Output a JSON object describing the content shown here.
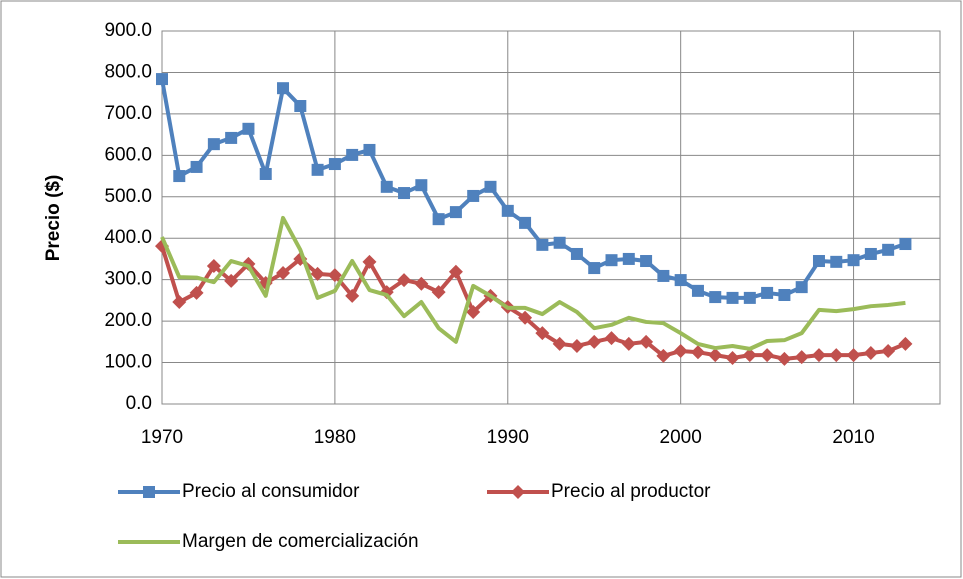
{
  "chart_data": {
    "type": "line",
    "y_label": "Precio ($)",
    "x": [
      1970,
      1971,
      1972,
      1973,
      1974,
      1975,
      1976,
      1977,
      1978,
      1979,
      1980,
      1981,
      1982,
      1983,
      1984,
      1985,
      1986,
      1987,
      1988,
      1989,
      1990,
      1991,
      1992,
      1993,
      1994,
      1995,
      1996,
      1997,
      1998,
      1999,
      2000,
      2001,
      2002,
      2003,
      2004,
      2005,
      2006,
      2007,
      2008,
      2009,
      2010,
      2011,
      2012,
      2013
    ],
    "series": [
      {
        "name": "Precio al consumidor",
        "color": "#4f81bd",
        "marker": "square",
        "values": [
          784,
          550,
          572,
          627,
          642,
          664,
          555,
          762,
          719,
          565,
          579,
          601,
          613,
          524,
          509,
          528,
          446,
          463,
          502,
          524,
          466,
          437,
          384,
          389,
          362,
          328,
          347,
          350,
          345,
          309,
          299,
          273,
          258,
          256,
          256,
          268,
          263,
          282,
          345,
          343,
          347,
          362,
          372,
          386
        ]
      },
      {
        "name": "Precio al productor",
        "color": "#c0504d",
        "marker": "diamond",
        "values": [
          381,
          246,
          268,
          333,
          297,
          338,
          292,
          316,
          350,
          314,
          311,
          261,
          343,
          270,
          299,
          290,
          270,
          319,
          222,
          261,
          234,
          208,
          171,
          145,
          140,
          150,
          159,
          145,
          150,
          116,
          128,
          125,
          118,
          111,
          118,
          118,
          109,
          113,
          118,
          118,
          118,
          123,
          128,
          145
        ]
      },
      {
        "name": "Margen de comercialización",
        "color": "#9bbb59",
        "values": [
          403,
          306,
          305,
          294,
          345,
          333,
          261,
          449,
          372,
          256,
          273,
          345,
          275,
          263,
          212,
          246,
          183,
          150,
          285,
          261,
          232,
          232,
          217,
          246,
          222,
          183,
          191,
          208,
          198,
          195,
          171,
          145,
          135,
          140,
          133,
          152,
          154,
          171,
          227,
          224,
          229,
          236,
          239,
          244
        ]
      }
    ],
    "xlim": [
      1970,
      2015
    ],
    "xticks": [
      1970,
      1980,
      1990,
      2000,
      2010
    ],
    "ylim": [
      0,
      900
    ],
    "yticks": [
      {
        "value": 0,
        "label": "0.0"
      },
      {
        "value": 100,
        "label": "100.0"
      },
      {
        "value": 200,
        "label": "200.0"
      },
      {
        "value": 300,
        "label": "300.0"
      },
      {
        "value": 400,
        "label": "400.0"
      },
      {
        "value": 500,
        "label": "500.0"
      },
      {
        "value": 600,
        "label": "600.0"
      },
      {
        "value": 700,
        "label": "700.0"
      },
      {
        "value": 800,
        "label": "800.0"
      },
      {
        "value": 900,
        "label": "900.0"
      }
    ],
    "grid": true
  }
}
